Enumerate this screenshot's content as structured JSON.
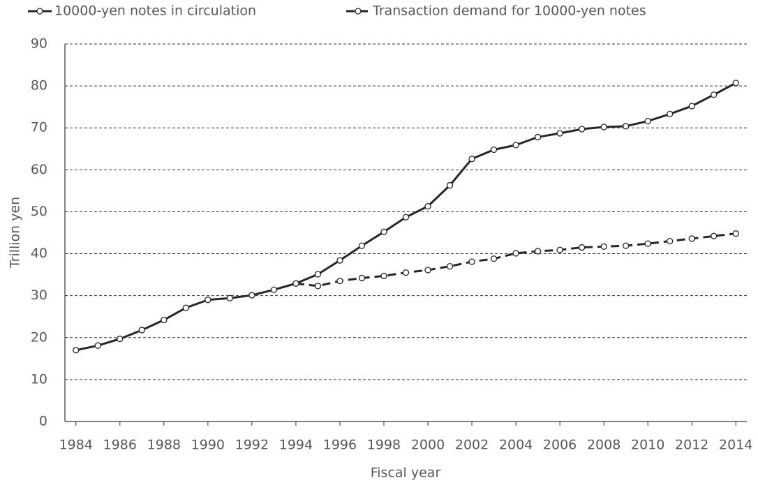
{
  "chart_data": {
    "type": "line",
    "x_label": "Fiscal year",
    "y_label": "Trillion yen",
    "x": [
      1984,
      1985,
      1986,
      1987,
      1988,
      1989,
      1990,
      1991,
      1992,
      1993,
      1994,
      1995,
      1996,
      1997,
      1998,
      1999,
      2000,
      2001,
      2002,
      2003,
      2004,
      2005,
      2006,
      2007,
      2008,
      2009,
      2010,
      2011,
      2012,
      2013,
      2014
    ],
    "series": [
      {
        "name": "10000-yen notes in circulation",
        "color": "#262626",
        "dash": false,
        "values": [
          17.0,
          18.1,
          19.7,
          21.8,
          24.2,
          27.1,
          29.0,
          29.4,
          30.1,
          31.4,
          32.9,
          35.1,
          38.4,
          41.9,
          45.2,
          48.7,
          51.3,
          56.3,
          62.6,
          64.8,
          65.9,
          67.8,
          68.7,
          69.7,
          70.2,
          70.4,
          71.6,
          73.3,
          75.2,
          77.9,
          80.7
        ]
      },
      {
        "name": "Transaction demand for 10000-yen notes",
        "color": "#262626",
        "dash": true,
        "values": [
          null,
          null,
          null,
          null,
          null,
          null,
          null,
          null,
          null,
          null,
          32.9,
          32.3,
          33.5,
          34.2,
          34.7,
          35.5,
          36.1,
          37.0,
          38.1,
          38.8,
          40.1,
          40.6,
          40.9,
          41.5,
          41.7,
          41.9,
          42.4,
          43.0,
          43.6,
          44.2,
          44.8
        ]
      }
    ],
    "xlim": [
      1983.5,
      2014.5
    ],
    "xticks": [
      1984,
      1986,
      1988,
      1990,
      1992,
      1994,
      1996,
      1998,
      2000,
      2002,
      2004,
      2006,
      2008,
      2010,
      2012,
      2014
    ],
    "ylim": [
      0,
      90
    ],
    "yticks": [
      0,
      10,
      20,
      30,
      40,
      50,
      60,
      70,
      80,
      90
    ],
    "grid": true,
    "legend": "top"
  }
}
